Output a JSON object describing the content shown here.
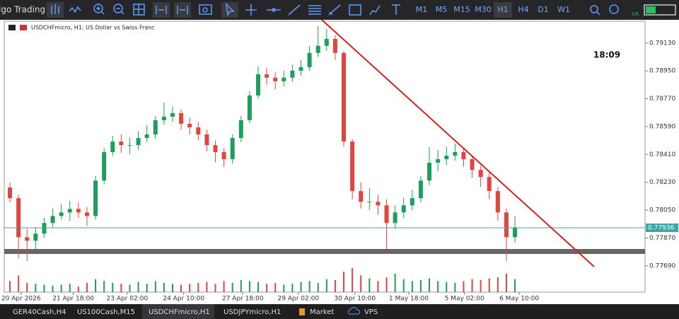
{
  "toolbar": {
    "app_title": "lgo Trading",
    "timeframes": [
      "M1",
      "M5",
      "M15",
      "M30",
      "H1",
      "H4",
      "D1",
      "W1"
    ],
    "level_badge": "LVL"
  },
  "chart_data": {
    "type": "candlestick",
    "title": "USDCHFmicro, H1: US Dollar vs Swiss Franc",
    "clock": "18:09",
    "up_color": "#1e9e5a",
    "down_color": "#e5433d",
    "current_price": 0.77936,
    "current_price_color": "#3aa6a6",
    "xlim": [
      0,
      74.7
    ],
    "ylim": [
      0.7752,
      0.7928
    ],
    "xticks": [
      {
        "value": 1.8,
        "label": "20 Apr 2026"
      },
      {
        "value": 7.9,
        "label": "21 Apr 18:00"
      },
      {
        "value": 14.2,
        "label": "23 Apr 02:00"
      },
      {
        "value": 20.8,
        "label": "24 Apr 10:00"
      },
      {
        "value": 27.7,
        "label": "27 Apr 18:00"
      },
      {
        "value": 34.2,
        "label": "29 Apr 02:00"
      },
      {
        "value": 40.8,
        "label": "30 Apr 10:00"
      },
      {
        "value": 47.1,
        "label": "1 May 18:00"
      },
      {
        "value": 53.6,
        "label": "5 May 02:00"
      },
      {
        "value": 60,
        "label": "6 May 10:00"
      }
    ],
    "yticks": [
      {
        "value": 0.7913,
        "label": "0.79130"
      },
      {
        "value": 0.7895,
        "label": "0.78950"
      },
      {
        "value": 0.7877,
        "label": "0.78770"
      },
      {
        "value": 0.7859,
        "label": "0.78590"
      },
      {
        "value": 0.7841,
        "label": "0.78410"
      },
      {
        "value": 0.7823,
        "label": "0.78230"
      },
      {
        "value": 0.7805,
        "label": "0.78050"
      },
      {
        "value": 0.7787,
        "label": "0.77870"
      },
      {
        "value": 0.7769,
        "label": "0.77690"
      }
    ],
    "ohlc": [
      [
        0.78196,
        0.7823,
        0.781,
        0.78127
      ],
      [
        0.78127,
        0.7815,
        0.7774,
        0.77875
      ],
      [
        0.77875,
        0.7793,
        0.7772,
        0.77852
      ],
      [
        0.77852,
        0.7794,
        0.778,
        0.77898
      ],
      [
        0.77898,
        0.78,
        0.7787,
        0.77967
      ],
      [
        0.77967,
        0.7806,
        0.7794,
        0.78012
      ],
      [
        0.78012,
        0.7809,
        0.7799,
        0.78035
      ],
      [
        0.78035,
        0.7811,
        0.7798,
        0.78058
      ],
      [
        0.78058,
        0.781,
        0.78,
        0.78035
      ],
      [
        0.78035,
        0.7807,
        0.7795,
        0.78012
      ],
      [
        0.78012,
        0.7827,
        0.7799,
        0.78241
      ],
      [
        0.78241,
        0.7845,
        0.7822,
        0.78425
      ],
      [
        0.78425,
        0.7853,
        0.784,
        0.78493
      ],
      [
        0.78493,
        0.7854,
        0.7842,
        0.7847
      ],
      [
        0.7847,
        0.7852,
        0.7841,
        0.7847
      ],
      [
        0.7847,
        0.7856,
        0.7844,
        0.78516
      ],
      [
        0.78516,
        0.786,
        0.7849,
        0.78539
      ],
      [
        0.78539,
        0.7866,
        0.7851,
        0.78631
      ],
      [
        0.78631,
        0.78745,
        0.786,
        0.78654
      ],
      [
        0.78654,
        0.7872,
        0.7862,
        0.78677
      ],
      [
        0.78677,
        0.787,
        0.7857,
        0.78608
      ],
      [
        0.78608,
        0.7865,
        0.7854,
        0.78585
      ],
      [
        0.78585,
        0.7862,
        0.785,
        0.78539
      ],
      [
        0.78539,
        0.7857,
        0.7843,
        0.7847
      ],
      [
        0.7847,
        0.785,
        0.7836,
        0.78425
      ],
      [
        0.78425,
        0.7845,
        0.7833,
        0.78379
      ],
      [
        0.78379,
        0.7854,
        0.7835,
        0.78516
      ],
      [
        0.78516,
        0.7866,
        0.7849,
        0.78631
      ],
      [
        0.78631,
        0.7882,
        0.7861,
        0.78791
      ],
      [
        0.78791,
        0.7898,
        0.7877,
        0.78928
      ],
      [
        0.78928,
        0.7897,
        0.7886,
        0.78906
      ],
      [
        0.78906,
        0.7894,
        0.7883,
        0.78883
      ],
      [
        0.78883,
        0.7895,
        0.7885,
        0.78906
      ],
      [
        0.78906,
        0.7899,
        0.7888,
        0.78951
      ],
      [
        0.78951,
        0.7902,
        0.7892,
        0.78974
      ],
      [
        0.78974,
        0.7911,
        0.7895,
        0.79066
      ],
      [
        0.79066,
        0.7924,
        0.7904,
        0.79112
      ],
      [
        0.79112,
        0.7922,
        0.7908,
        0.79157
      ],
      [
        0.79157,
        0.7918,
        0.7902,
        0.79066
      ],
      [
        0.79066,
        0.7908,
        0.7846,
        0.78493
      ],
      [
        0.78493,
        0.7851,
        0.7812,
        0.78173
      ],
      [
        0.78173,
        0.7823,
        0.7806,
        0.78104
      ],
      [
        0.78104,
        0.7819,
        0.7805,
        0.78104
      ],
      [
        0.78104,
        0.7815,
        0.7802,
        0.78081
      ],
      [
        0.78081,
        0.7812,
        0.778,
        0.77967
      ],
      [
        0.77967,
        0.7808,
        0.7793,
        0.78035
      ],
      [
        0.78035,
        0.7813,
        0.78,
        0.78081
      ],
      [
        0.78081,
        0.7818,
        0.7805,
        0.78127
      ],
      [
        0.78127,
        0.7827,
        0.781,
        0.78241
      ],
      [
        0.78241,
        0.78457,
        0.7821,
        0.78356
      ],
      [
        0.78356,
        0.7844,
        0.783,
        0.78379
      ],
      [
        0.78379,
        0.7846,
        0.7834,
        0.78402
      ],
      [
        0.78402,
        0.7848,
        0.7837,
        0.78425
      ],
      [
        0.78425,
        0.7845,
        0.7833,
        0.78379
      ],
      [
        0.78379,
        0.784,
        0.7826,
        0.7831
      ],
      [
        0.7831,
        0.7834,
        0.782,
        0.78264
      ],
      [
        0.78264,
        0.783,
        0.7812,
        0.78173
      ],
      [
        0.78173,
        0.782,
        0.7798,
        0.78035
      ],
      [
        0.78035,
        0.7806,
        0.7772,
        0.77875
      ],
      [
        0.77875,
        0.7801,
        0.7784,
        0.77936
      ]
    ],
    "volumes": [
      12,
      18,
      10,
      9,
      8,
      7,
      8,
      9,
      6,
      10,
      14,
      12,
      10,
      9,
      8,
      11,
      9,
      12,
      10,
      9,
      8,
      9,
      10,
      11,
      9,
      12,
      10,
      13,
      12,
      11,
      9,
      10,
      8,
      9,
      11,
      12,
      10,
      14,
      13,
      22,
      26,
      18,
      15,
      12,
      16,
      20,
      14,
      12,
      13,
      15,
      12,
      11,
      10,
      12,
      14,
      13,
      15,
      16,
      20,
      14
    ]
  },
  "tabs": [
    "GER40Cash,H4",
    "US100Cash,M15",
    "USDCHFmicro,H1",
    "USDJPYmicro,H1",
    "Market",
    "VPS"
  ]
}
